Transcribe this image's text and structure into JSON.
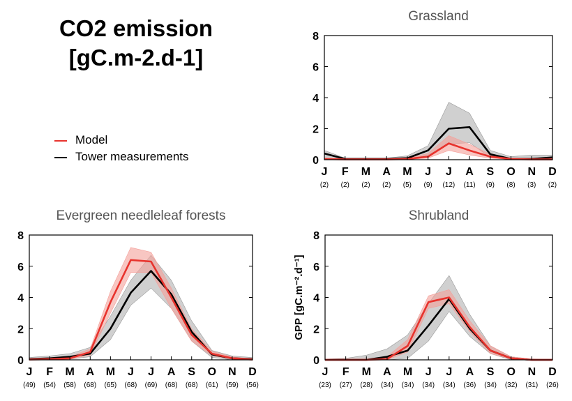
{
  "title": {
    "line1": "CO2 emission",
    "line2": "[gC.m-2.d-1]"
  },
  "legend": [
    {
      "label": "Model",
      "color": "#e8332d"
    },
    {
      "label": "Tower measurements",
      "color": "#000000"
    }
  ],
  "colors": {
    "model": "#e8332d",
    "model_band": "#f4a09a",
    "tower": "#000000",
    "tower_band": "#a9a9a9"
  },
  "chart_data": [
    {
      "type": "line",
      "title": "Grassland",
      "ylabel": "",
      "ylim": [
        0,
        8
      ],
      "yticks": [
        "0",
        "2",
        "4",
        "6",
        "8"
      ],
      "categories": [
        "J",
        "F",
        "M",
        "A",
        "M",
        "J",
        "J",
        "A",
        "S",
        "O",
        "N",
        "D"
      ],
      "counts": [
        "(2)",
        "(2)",
        "(2)",
        "(2)",
        "(5)",
        "(9)",
        "(12)",
        "(11)",
        "(9)",
        "(8)",
        "(3)",
        "(2)"
      ],
      "series": [
        {
          "role": "tower",
          "values": [
            0.4,
            0.05,
            0.05,
            0.05,
            0.1,
            0.6,
            2.0,
            2.1,
            0.35,
            0.05,
            0.05,
            0.15
          ],
          "lower": [
            0.0,
            0.0,
            0.0,
            0.0,
            0.0,
            0.3,
            1.0,
            1.1,
            0.15,
            0.0,
            0.0,
            0.05
          ],
          "upper": [
            0.6,
            0.1,
            0.1,
            0.1,
            0.25,
            0.9,
            3.7,
            3.0,
            0.6,
            0.2,
            0.3,
            0.3
          ]
        },
        {
          "role": "model",
          "values": [
            0.05,
            0.02,
            0.02,
            0.02,
            0.05,
            0.2,
            1.05,
            0.6,
            0.2,
            0.05,
            0.02,
            0.02
          ],
          "lower": [
            0.0,
            0.0,
            0.0,
            0.0,
            0.02,
            0.1,
            0.6,
            0.3,
            0.1,
            0.02,
            0.0,
            0.0
          ],
          "upper": [
            0.1,
            0.05,
            0.05,
            0.05,
            0.1,
            0.4,
            1.55,
            1.0,
            0.35,
            0.1,
            0.05,
            0.05
          ]
        }
      ]
    },
    {
      "type": "line",
      "title": "Evergreen needleleaf forests",
      "ylabel": "",
      "ylim": [
        0,
        8
      ],
      "yticks": [
        "0",
        "2",
        "4",
        "6",
        "8"
      ],
      "categories": [
        "J",
        "F",
        "M",
        "A",
        "M",
        "J",
        "J",
        "A",
        "S",
        "O",
        "N",
        "D"
      ],
      "counts": [
        "(49)",
        "(54)",
        "(58)",
        "(68)",
        "(65)",
        "(68)",
        "(69)",
        "(68)",
        "(68)",
        "(61)",
        "(59)",
        "(56)"
      ],
      "series": [
        {
          "role": "tower",
          "values": [
            0.05,
            0.1,
            0.2,
            0.4,
            2.0,
            4.3,
            5.7,
            4.2,
            1.8,
            0.35,
            0.1,
            0.05
          ],
          "lower": [
            0.0,
            0.0,
            0.05,
            0.2,
            1.3,
            3.5,
            4.6,
            3.3,
            1.2,
            0.15,
            0.0,
            0.0
          ],
          "upper": [
            0.15,
            0.25,
            0.4,
            0.8,
            2.8,
            5.1,
            6.7,
            5.1,
            2.5,
            0.6,
            0.25,
            0.15
          ]
        },
        {
          "role": "model",
          "values": [
            0.02,
            0.05,
            0.1,
            0.5,
            3.7,
            6.4,
            6.3,
            4.0,
            1.6,
            0.4,
            0.1,
            0.02
          ],
          "lower": [
            0.0,
            0.0,
            0.05,
            0.3,
            3.0,
            5.6,
            5.6,
            3.3,
            1.2,
            0.25,
            0.05,
            0.0
          ],
          "upper": [
            0.05,
            0.1,
            0.2,
            0.7,
            4.4,
            7.2,
            6.9,
            4.6,
            2.0,
            0.55,
            0.2,
            0.05
          ]
        }
      ]
    },
    {
      "type": "line",
      "title": "Shrubland",
      "ylabel": "GPP  [gC.m⁻².d⁻¹]",
      "ylim": [
        0,
        8
      ],
      "yticks": [
        "0",
        "2",
        "4",
        "6",
        "8"
      ],
      "categories": [
        "J",
        "F",
        "M",
        "A",
        "M",
        "J",
        "J",
        "A",
        "S",
        "O",
        "N",
        "D"
      ],
      "counts": [
        "(23)",
        "(27)",
        "(28)",
        "(34)",
        "(34)",
        "(34)",
        "(34)",
        "(36)",
        "(34)",
        "(32)",
        "(31)",
        "(26)"
      ],
      "series": [
        {
          "role": "tower",
          "values": [
            0.0,
            0.0,
            0.0,
            0.2,
            0.6,
            2.2,
            3.9,
            2.0,
            0.6,
            0.1,
            0.0,
            0.0
          ],
          "lower": [
            0.0,
            0.0,
            0.0,
            0.0,
            0.1,
            1.2,
            3.1,
            1.5,
            0.4,
            0.0,
            0.0,
            0.0
          ],
          "upper": [
            0.05,
            0.1,
            0.3,
            0.7,
            1.6,
            3.6,
            5.4,
            2.9,
            0.9,
            0.2,
            0.05,
            0.0
          ]
        },
        {
          "role": "model",
          "values": [
            0.0,
            0.0,
            0.0,
            0.05,
            0.9,
            3.7,
            4.0,
            2.1,
            0.6,
            0.1,
            0.0,
            0.0
          ],
          "lower": [
            0.0,
            0.0,
            0.0,
            0.0,
            0.5,
            3.3,
            3.6,
            1.8,
            0.4,
            0.05,
            0.0,
            0.0
          ],
          "upper": [
            0.05,
            0.05,
            0.05,
            0.2,
            1.3,
            4.1,
            4.5,
            2.5,
            0.9,
            0.2,
            0.05,
            0.0
          ]
        }
      ]
    }
  ]
}
